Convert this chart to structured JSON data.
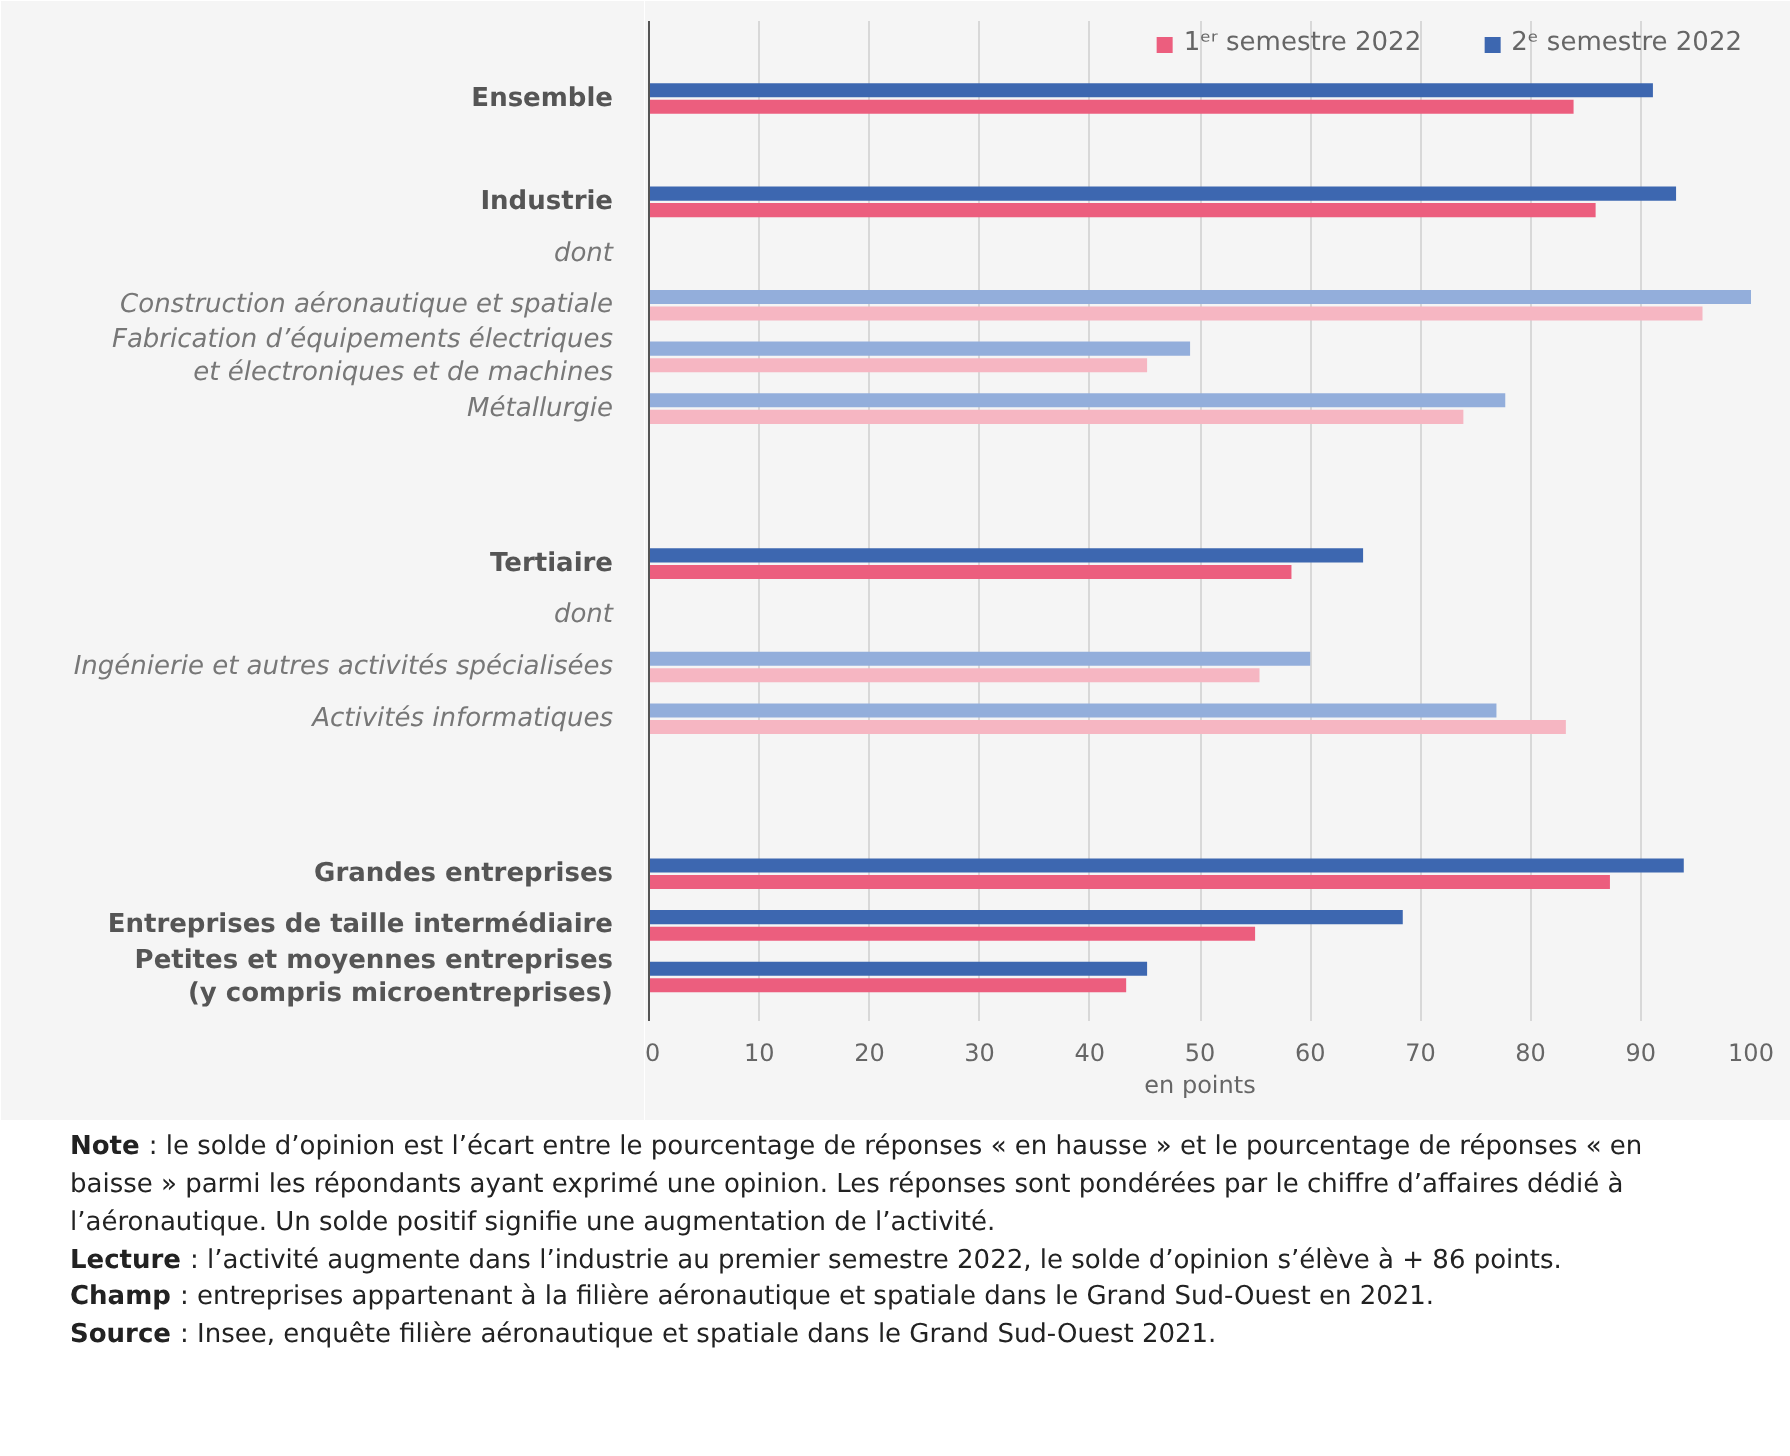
{
  "chart_data": {
    "type": "bar",
    "orientation": "horizontal",
    "categories": [
      "Ensemble",
      null,
      "Industrie",
      "dont",
      "Construction aéronautique et spatiale",
      "Fabrication d’équipements électriques\net électroniques et de machines",
      "Métallurgie",
      null,
      null,
      "Tertiaire",
      "dont",
      "Ingénierie et autres activités spécialisées",
      "Activités informatiques",
      null,
      null,
      "Grandes entreprises",
      "Entreprises de taille intermédiaire",
      "Petites et moyennes entreprises\n(y compris microentreprises)"
    ],
    "series": [
      {
        "name": "1ᵉʳ semestre 2022",
        "color": "#ec5e7e",
        "values": [
          83.9,
          null,
          85.9,
          null,
          95.6,
          45.2,
          73.9,
          null,
          null,
          58.3,
          null,
          55.4,
          83.2,
          null,
          null,
          87.2,
          55.0,
          43.3
        ],
        "colors": [
          null,
          null,
          null,
          null,
          "#f6b6c2",
          "#f6b6c2",
          "#f6b6c2",
          null,
          null,
          null,
          null,
          "#f6b6c2",
          "#f6b6c2",
          null,
          null,
          null,
          null,
          null
        ]
      },
      {
        "name": "2ᵉ semestre 2022",
        "color": "#3d67b0",
        "values": [
          91.1,
          null,
          93.2,
          null,
          100,
          49.1,
          77.7,
          null,
          null,
          64.8,
          null,
          60.0,
          76.9,
          null,
          null,
          93.9,
          68.4,
          45.2
        ],
        "colors": [
          null,
          null,
          null,
          null,
          "#93aedb",
          "#93aedb",
          "#93aedb",
          null,
          null,
          null,
          null,
          "#93aedb",
          "#93aedb",
          null,
          null,
          null,
          null,
          null
        ]
      }
    ],
    "xlabel": "en points",
    "xlim": [
      0,
      100
    ],
    "xticks": [
      0,
      10,
      20,
      30,
      40,
      50,
      60,
      70,
      80,
      90,
      100
    ],
    "grid": "x",
    "legend": "top right",
    "annotations": [
      "Note : le solde d’opinion est l’écart entre le pourcentage de réponses « en hausse » et le pourcentage de réponses « en baisse » parmi les répondants ayant exprimé une opinion. Les réponses sont pondérées par le chiffre d’affaires dédié à l’aéronautique. Un solde positif signifie une augmentation de l’activité.",
      "Lecture : l’activité augmente dans l’industrie au premier semestre 2022, le solde d’opinion s’élève à + 86 points.",
      "Champ : entreprises appartenant à la filière aéronautique et spatiale dans le Grand Sud-Ouest en 2021.",
      "Source : Insee, enquête filière aéronautique et spatiale dans le Grand Sud-Ouest 2021."
    ]
  }
}
